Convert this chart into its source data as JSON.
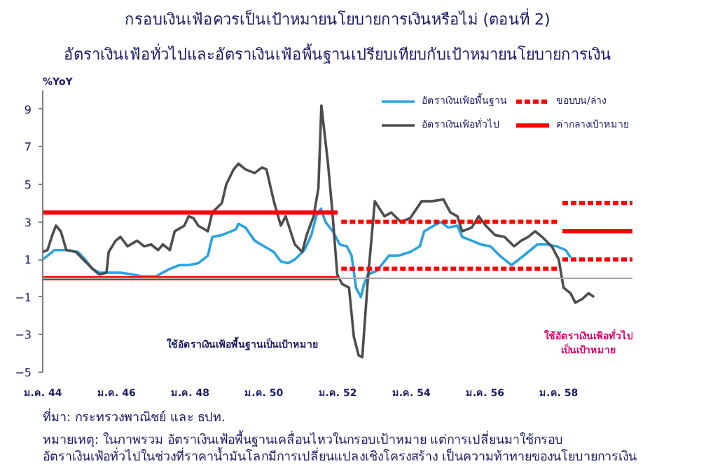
{
  "chart_data": {
    "type": "line",
    "title": "กรอบเงินเฟ้อควรเป็นเป้าหมายนโยบายการเงินหรือไม่ (ตอนที่ 2)",
    "subtitle": "อัตราเงินเฟ้อทั่วไปและอัตราเงินเฟ้อพื้นฐานเปรียบเทียบกับเป้าหมายนโยบายการเงิน",
    "ylabel": "%YoY",
    "xlim": [
      44,
      60
    ],
    "ylim": [
      -5,
      10
    ],
    "xticks": [
      {
        "value": 44,
        "label": "ม.ค. 44"
      },
      {
        "value": 46,
        "label": "ม.ค. 46"
      },
      {
        "value": 48,
        "label": "ม.ค. 48"
      },
      {
        "value": 50,
        "label": "ม.ค. 50"
      },
      {
        "value": 52,
        "label": "ม.ค. 52"
      },
      {
        "value": 54,
        "label": "ม.ค. 54"
      },
      {
        "value": 56,
        "label": "ม.ค. 56"
      },
      {
        "value": 58,
        "label": "ม.ค. 58"
      }
    ],
    "yticks": [
      -5,
      -3,
      -1,
      1,
      3,
      5,
      7,
      9
    ],
    "grid": false,
    "legend": "top right",
    "ref_lines": [
      {
        "axis": "y",
        "value": 0,
        "color": "#a6a6a6"
      }
    ],
    "series": [
      {
        "name": "อัตราเงินเฟ้อพื้นฐาน",
        "color": "#29a3e0",
        "line_style": "solid",
        "x": [
          44.0,
          44.13,
          44.32,
          44.64,
          44.96,
          45.15,
          45.34,
          45.54,
          45.79,
          46.11,
          46.43,
          46.69,
          47.07,
          47.26,
          47.45,
          47.71,
          47.96,
          48.22,
          48.48,
          48.6,
          48.86,
          49.24,
          49.31,
          49.5,
          49.75,
          50.01,
          50.27,
          50.46,
          50.65,
          50.84,
          51.1,
          51.29,
          51.42,
          51.55,
          51.67,
          51.87,
          52.06,
          52.25,
          52.38,
          52.5,
          52.63,
          52.72,
          52.82,
          53.07,
          53.39,
          53.65,
          53.97,
          54.23,
          54.35,
          54.61,
          54.8,
          55.0,
          55.25,
          55.38,
          55.64,
          55.89,
          56.15,
          56.4,
          56.72,
          56.92,
          57.17,
          57.42,
          57.68,
          57.94,
          58.19,
          58.32
        ],
        "values": [
          1.0,
          1.2,
          1.5,
          1.5,
          1.4,
          1.0,
          0.5,
          0.3,
          0.3,
          0.3,
          0.2,
          0.1,
          0.1,
          0.3,
          0.5,
          0.7,
          0.7,
          0.8,
          1.2,
          2.2,
          2.3,
          2.6,
          2.9,
          2.7,
          2.0,
          1.7,
          1.4,
          0.9,
          0.8,
          1.0,
          1.5,
          2.3,
          3.3,
          3.7,
          3.0,
          2.5,
          1.8,
          1.7,
          1.2,
          -0.5,
          -1.0,
          -0.3,
          0.2,
          0.4,
          1.2,
          1.2,
          1.4,
          1.7,
          2.5,
          2.8,
          3.0,
          2.7,
          2.8,
          2.2,
          2.0,
          1.8,
          1.7,
          1.2,
          0.7,
          1.0,
          1.4,
          1.8,
          1.8,
          1.7,
          1.5,
          1.1
        ]
      },
      {
        "name": "อัตราเงินเฟ้อทั่วไป",
        "color": "#4d4d4d",
        "line_style": "solid",
        "x": [
          44.0,
          44.13,
          44.26,
          44.36,
          44.49,
          44.64,
          44.9,
          45.15,
          45.41,
          45.54,
          45.73,
          45.79,
          45.98,
          46.11,
          46.3,
          46.56,
          46.75,
          46.94,
          47.13,
          47.26,
          47.45,
          47.58,
          47.84,
          47.96,
          48.09,
          48.22,
          48.48,
          48.6,
          48.86,
          48.98,
          49.18,
          49.31,
          49.5,
          49.75,
          49.95,
          50.07,
          50.27,
          50.46,
          50.59,
          50.84,
          51.04,
          51.16,
          51.35,
          51.48,
          51.56,
          51.74,
          51.86,
          51.99,
          52.12,
          52.31,
          52.44,
          52.57,
          52.67,
          52.82,
          53.01,
          53.27,
          53.46,
          53.71,
          53.97,
          54.28,
          54.55,
          54.87,
          55.06,
          55.25,
          55.38,
          55.64,
          55.83,
          56.02,
          56.27,
          56.53,
          56.79,
          56.98,
          57.17,
          57.36,
          57.55,
          57.81,
          58.0,
          58.13,
          58.32,
          58.45,
          58.64,
          58.81,
          58.96
        ],
        "values": [
          1.4,
          1.5,
          2.3,
          2.8,
          2.5,
          1.5,
          1.4,
          0.9,
          0.4,
          0.2,
          0.3,
          1.4,
          2.0,
          2.2,
          1.7,
          2.0,
          1.7,
          1.8,
          1.5,
          1.8,
          1.5,
          2.5,
          2.8,
          3.3,
          3.2,
          2.8,
          2.5,
          3.5,
          4.0,
          5.0,
          5.8,
          6.1,
          5.8,
          5.6,
          5.9,
          5.8,
          4.1,
          2.8,
          3.3,
          1.8,
          1.4,
          2.3,
          3.3,
          4.8,
          9.2,
          6.1,
          3.5,
          0.2,
          -0.3,
          -0.5,
          -3.1,
          -4.1,
          -4.2,
          -0.1,
          4.1,
          3.3,
          3.5,
          3.0,
          3.2,
          4.1,
          4.1,
          4.2,
          3.5,
          3.3,
          2.5,
          2.7,
          3.3,
          2.8,
          2.3,
          2.2,
          1.7,
          2.0,
          2.2,
          2.5,
          2.2,
          1.7,
          1.0,
          -0.5,
          -0.8,
          -1.3,
          -1.1,
          -0.8,
          -1.0
        ]
      },
      {
        "name": "ขอบบน/ล่าง",
        "color": "#ff0000",
        "line_style": "dashed",
        "x": [
          52.1,
          58.0
        ],
        "values": [
          3.0,
          3.0
        ]
      },
      {
        "name": "ค่ากลางเป้าหมาย",
        "color": "#ff0000",
        "line_style": "solid",
        "x": [
          58.1,
          60
        ],
        "values": [
          2.5,
          2.5
        ]
      },
      {
        "color": "#ff0000",
        "line_style": "dashed",
        "x": [
          52.1,
          58.0
        ],
        "values": [
          0.5,
          0.5
        ]
      },
      {
        "color": "#ff0000",
        "line_style": "dashed",
        "x": [
          58.1,
          60
        ],
        "values": [
          4.0,
          4.0
        ]
      },
      {
        "color": "#ff0000",
        "line_style": "dashed",
        "x": [
          58.1,
          60
        ],
        "values": [
          1.0,
          1.0
        ]
      },
      {
        "color": "#ff0000",
        "line_style": "solid",
        "x": [
          44,
          52.0
        ],
        "values": [
          3.5,
          3.5
        ]
      },
      {
        "color": "#ff0000",
        "line_style": "solid",
        "x": [
          44,
          52.0
        ],
        "values": [
          0.0,
          0.0
        ]
      }
    ],
    "annotations": [
      "ใช้อัตราเงินเฟ้อพื้นฐานเป็นเป้าหมาย",
      "ใช้อัตราเงินเฟ้อทั่วไป\nเป็นเป้าหมาย",
      "ที่มา: กระทรวงพาณิชย์ และ ธปท.",
      "หมายเหตุ: ในภาพรวม อัตราเงินเฟ้อพื้นฐานเคลื่อนไหวในกรอบเป้าหมาย แต่การเปลี่ยนมาใช้กรอบ",
      "อัตราเงินเฟ้อทั่วไปในช่วงที่ราคาน้ำมันโลกมีการเปลี่ยนแปลงเชิงโครงสร้าง เป็นความท้าทายของนโยบายการเงิน"
    ]
  }
}
